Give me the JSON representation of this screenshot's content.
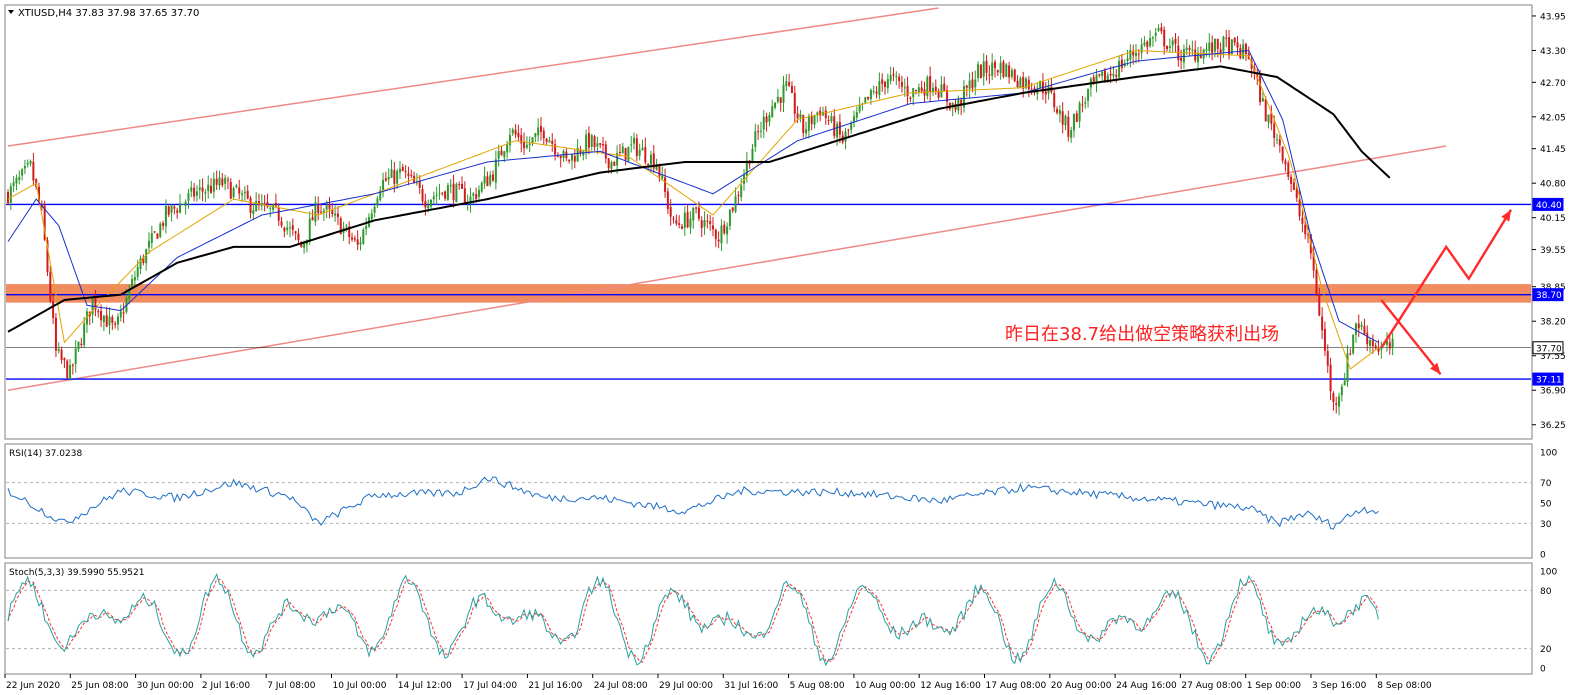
{
  "chart_data": {
    "type": "candlestick",
    "symbol_header": "XTIUSD,H4  37.83 37.98 37.65 37.70",
    "price_axis": {
      "ylim": [
        36.0,
        44.1
      ],
      "tick_labels": [
        "43.95",
        "43.30",
        "42.70",
        "42.05",
        "41.45",
        "40.80",
        "40.15",
        "39.55",
        "38.85",
        "38.20",
        "37.55",
        "36.90",
        "36.25"
      ],
      "tick_values": [
        43.95,
        43.3,
        42.7,
        42.05,
        41.45,
        40.8,
        40.15,
        39.55,
        38.85,
        38.2,
        37.55,
        36.9,
        36.25
      ]
    },
    "time_axis": {
      "labels": [
        "22 Jun 2020",
        "25 Jun 08:00",
        "30 Jun 00:00",
        "2 Jul 16:00",
        "7 Jul 08:00",
        "10 Jul 00:00",
        "14 Jul 12:00",
        "17 Jul 04:00",
        "21 Jul 16:00",
        "24 Jul 08:00",
        "29 Jul 00:00",
        "31 Jul 16:00",
        "5 Aug 08:00",
        "10 Aug 00:00",
        "12 Aug 16:00",
        "17 Aug 08:00",
        "20 Aug 00:00",
        "24 Aug 16:00",
        "27 Aug 08:00",
        "1 Sep 00:00",
        "3 Sep 16:00",
        "8 Sep 08:00"
      ]
    },
    "close_anchors": [
      [
        0,
        40.6
      ],
      [
        8,
        41.1
      ],
      [
        12,
        40.2
      ],
      [
        17,
        37.6
      ],
      [
        22,
        37.2
      ],
      [
        30,
        38.6
      ],
      [
        38,
        38.0
      ],
      [
        46,
        39.2
      ],
      [
        56,
        40.2
      ],
      [
        66,
        40.6
      ],
      [
        76,
        40.8
      ],
      [
        86,
        40.4
      ],
      [
        96,
        40.2
      ],
      [
        104,
        39.6
      ],
      [
        110,
        40.4
      ],
      [
        118,
        40.0
      ],
      [
        124,
        39.6
      ],
      [
        132,
        40.8
      ],
      [
        140,
        41.0
      ],
      [
        148,
        40.5
      ],
      [
        156,
        40.7
      ],
      [
        164,
        40.5
      ],
      [
        172,
        41.0
      ],
      [
        178,
        41.8
      ],
      [
        184,
        41.5
      ],
      [
        190,
        41.8
      ],
      [
        198,
        41.2
      ],
      [
        206,
        41.6
      ],
      [
        214,
        41.2
      ],
      [
        222,
        41.5
      ],
      [
        230,
        41.2
      ],
      [
        236,
        40.0
      ],
      [
        244,
        40.2
      ],
      [
        252,
        39.8
      ],
      [
        258,
        40.5
      ],
      [
        264,
        41.5
      ],
      [
        270,
        42.2
      ],
      [
        276,
        42.6
      ],
      [
        282,
        41.8
      ],
      [
        288,
        42.2
      ],
      [
        296,
        41.6
      ],
      [
        304,
        42.3
      ],
      [
        312,
        42.8
      ],
      [
        320,
        42.5
      ],
      [
        328,
        42.7
      ],
      [
        336,
        42.2
      ],
      [
        344,
        42.9
      ],
      [
        352,
        43.0
      ],
      [
        360,
        42.7
      ],
      [
        368,
        42.6
      ],
      [
        376,
        41.8
      ],
      [
        384,
        42.6
      ],
      [
        392,
        42.9
      ],
      [
        400,
        43.3
      ],
      [
        408,
        43.6
      ],
      [
        416,
        43.2
      ],
      [
        424,
        43.3
      ],
      [
        432,
        43.4
      ],
      [
        440,
        43.2
      ],
      [
        446,
        42.1
      ],
      [
        452,
        41.4
      ],
      [
        458,
        40.2
      ],
      [
        462,
        39.5
      ],
      [
        466,
        38.0
      ],
      [
        470,
        36.6
      ],
      [
        474,
        37.2
      ],
      [
        478,
        38.2
      ],
      [
        482,
        37.9
      ],
      [
        486,
        37.7
      ]
    ],
    "ma_fast_anchors": [
      [
        0,
        40.5
      ],
      [
        10,
        40.8
      ],
      [
        20,
        37.8
      ],
      [
        30,
        38.4
      ],
      [
        50,
        39.5
      ],
      [
        80,
        40.5
      ],
      [
        110,
        40.2
      ],
      [
        140,
        40.8
      ],
      [
        180,
        41.6
      ],
      [
        220,
        41.3
      ],
      [
        250,
        40.2
      ],
      [
        280,
        42.0
      ],
      [
        320,
        42.5
      ],
      [
        360,
        42.6
      ],
      [
        400,
        43.3
      ],
      [
        440,
        43.2
      ],
      [
        455,
        41.2
      ],
      [
        466,
        38.8
      ],
      [
        476,
        37.3
      ],
      [
        486,
        37.7
      ]
    ],
    "ma_slow_anchors": [
      [
        0,
        39.7
      ],
      [
        10,
        40.5
      ],
      [
        18,
        40.0
      ],
      [
        28,
        38.5
      ],
      [
        40,
        38.4
      ],
      [
        60,
        39.4
      ],
      [
        90,
        40.2
      ],
      [
        130,
        40.6
      ],
      [
        170,
        41.2
      ],
      [
        210,
        41.4
      ],
      [
        250,
        40.6
      ],
      [
        280,
        41.6
      ],
      [
        320,
        42.3
      ],
      [
        360,
        42.5
      ],
      [
        400,
        43.1
      ],
      [
        440,
        43.3
      ],
      [
        452,
        42.0
      ],
      [
        462,
        39.8
      ],
      [
        472,
        38.2
      ],
      [
        486,
        37.8
      ]
    ],
    "ma_black_anchors": [
      [
        0,
        38.0
      ],
      [
        20,
        38.6
      ],
      [
        40,
        38.7
      ],
      [
        60,
        39.3
      ],
      [
        80,
        39.6
      ],
      [
        100,
        39.6
      ],
      [
        130,
        40.1
      ],
      [
        170,
        40.5
      ],
      [
        210,
        41.0
      ],
      [
        240,
        41.2
      ],
      [
        270,
        41.2
      ],
      [
        300,
        41.7
      ],
      [
        330,
        42.2
      ],
      [
        360,
        42.5
      ],
      [
        400,
        42.8
      ],
      [
        430,
        43.0
      ],
      [
        450,
        42.8
      ],
      [
        470,
        42.1
      ],
      [
        480,
        41.4
      ],
      [
        490,
        40.9
      ]
    ],
    "channel_lines": [
      {
        "from": [
          0,
          41.5
        ],
        "to": [
          330,
          44.1
        ]
      },
      {
        "from": [
          0,
          36.9
        ],
        "to": [
          510,
          41.5
        ]
      }
    ],
    "levels": [
      {
        "price": 40.4,
        "label": "40.40",
        "color": "#0000ff"
      },
      {
        "price": 38.7,
        "label": "38.70",
        "color": "#0000ff"
      },
      {
        "price": 37.7,
        "label": "37.70",
        "color": "#000000"
      },
      {
        "price": 37.11,
        "label": "37.11",
        "color": "#0000ff"
      }
    ],
    "zone": {
      "from": 38.55,
      "to": 38.9,
      "color": "#f08050"
    },
    "annotation": "昨日在38.7给出做空策略获利出场",
    "arrows": [
      {
        "path": [
          [
            487,
            37.7
          ],
          [
            510,
            39.6
          ],
          [
            518,
            39.0
          ],
          [
            533,
            40.3
          ]
        ]
      },
      {
        "path": [
          [
            487,
            38.6
          ],
          [
            508,
            37.2
          ]
        ]
      }
    ]
  },
  "rsi": {
    "label": "RSI(14) 37.0238",
    "ylim": [
      0,
      100
    ],
    "tick_labels": [
      "100",
      "70",
      "50",
      "30",
      "0"
    ],
    "levels": [
      70,
      30
    ],
    "anchors": [
      [
        0,
        62
      ],
      [
        20,
        30
      ],
      [
        40,
        62
      ],
      [
        60,
        55
      ],
      [
        80,
        70
      ],
      [
        100,
        56
      ],
      [
        110,
        30
      ],
      [
        130,
        58
      ],
      [
        160,
        60
      ],
      [
        170,
        75
      ],
      [
        190,
        55
      ],
      [
        210,
        55
      ],
      [
        240,
        42
      ],
      [
        260,
        62
      ],
      [
        300,
        60
      ],
      [
        330,
        52
      ],
      [
        360,
        65
      ],
      [
        400,
        55
      ],
      [
        440,
        45
      ],
      [
        450,
        30
      ],
      [
        460,
        40
      ],
      [
        470,
        28
      ],
      [
        480,
        45
      ],
      [
        486,
        42
      ]
    ]
  },
  "stoch": {
    "label": "Stoch(5,3,3) 39.5990 55.9521",
    "ylim": [
      0,
      100
    ],
    "tick_labels": [
      "100",
      "80",
      "20",
      "0"
    ],
    "levels": [
      80,
      20
    ]
  },
  "colors": {
    "bull": "#2e9a2e",
    "bear": "#d11b1b",
    "ma_fast": "#e2a400",
    "ma_slow": "#1a2fcc",
    "ma_black": "#000000",
    "channel": "#f08888",
    "arrow": "#ff2a2a",
    "rsi": "#1f6fc6",
    "stoch_main": "#2aa0a0",
    "stoch_signal": "#ff3030"
  }
}
